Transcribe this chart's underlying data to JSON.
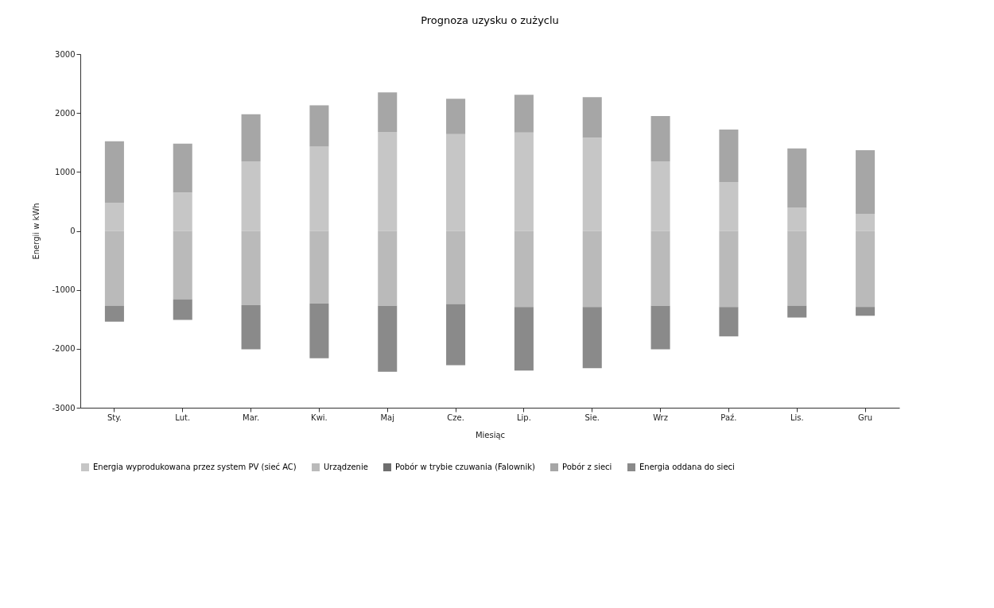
{
  "chart_data": {
    "type": "bar",
    "title": "Prognoza uzysku o zużyclu",
    "xlabel": "Miesiąc",
    "ylabel": "Energii w kWh",
    "categories": [
      "Sty.",
      "Lut.",
      "Mar.",
      "Kwi.",
      "Maj",
      "Cze.",
      "Lip.",
      "Sie.",
      "Wrz",
      "Paź.",
      "Lis.",
      "Gru"
    ],
    "stacked": true,
    "ylim": [
      -3000,
      3000
    ],
    "yticks": [
      -3000,
      -2000,
      -1000,
      0,
      1000,
      2000,
      3000
    ],
    "legend": "bottom",
    "series": [
      {
        "name": "Energia wyprodukowana przez system PV (sieć AC)",
        "color": "#c6c6c6",
        "values": [
          480,
          650,
          1180,
          1430,
          1680,
          1640,
          1670,
          1580,
          1180,
          830,
          390,
          290
        ]
      },
      {
        "name": "Urządzenie",
        "color": "#bababa",
        "values": [
          -1270,
          -1160,
          -1260,
          -1230,
          -1270,
          -1240,
          -1290,
          -1290,
          -1270,
          -1290,
          -1270,
          -1290
        ]
      },
      {
        "name": "Pobór w trybie czuwania (Falownik)",
        "color": "#6e6e6e",
        "values": [
          null,
          null,
          null,
          null,
          null,
          null,
          null,
          null,
          null,
          null,
          null,
          null
        ]
      },
      {
        "name": "Pobór z sieci",
        "color": "#a6a6a6",
        "values": [
          1040,
          830,
          800,
          700,
          670,
          600,
          640,
          690,
          770,
          890,
          1010,
          1080
        ]
      },
      {
        "name": "Energia oddana do sieci",
        "color": "#8a8a8a",
        "values": [
          -270,
          -350,
          -750,
          -930,
          -1120,
          -1040,
          -1080,
          -1040,
          -740,
          -500,
          -200,
          -150
        ]
      }
    ]
  }
}
